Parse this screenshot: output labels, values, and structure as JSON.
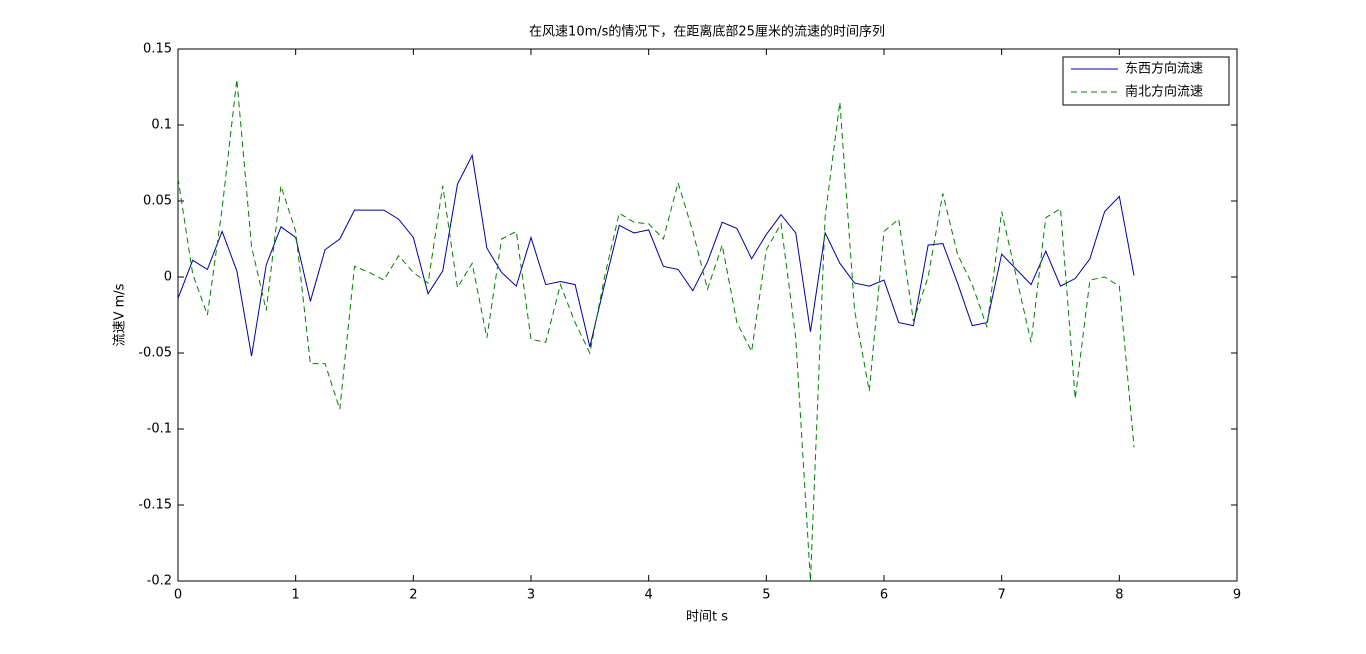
{
  "chart_data": {
    "type": "line",
    "title": "在风速10m/s的情况下，在距离底部25厘米的流速的时间序列",
    "x_label": "时间t s",
    "y_label": "流速V m/s",
    "x": [
      0,
      0.125,
      0.25,
      0.375,
      0.5,
      0.625,
      0.75,
      0.875,
      1,
      1.125,
      1.25,
      1.375,
      1.5,
      1.625,
      1.75,
      1.875,
      2,
      2.125,
      2.25,
      2.375,
      2.5,
      2.625,
      2.75,
      2.875,
      3,
      3.125,
      3.25,
      3.375,
      3.5,
      3.625,
      3.75,
      3.875,
      4,
      4.125,
      4.25,
      4.375,
      4.5,
      4.625,
      4.75,
      4.875,
      5,
      5.125,
      5.25,
      5.375,
      5.5,
      5.625,
      5.75,
      5.875,
      6,
      6.125,
      6.25,
      6.375,
      6.5,
      6.625,
      6.75,
      6.875,
      7,
      7.125,
      7.25,
      7.375,
      7.5,
      7.625,
      7.75,
      7.875,
      8,
      8.125
    ],
    "series": [
      {
        "name": "东西方向流速",
        "color": "#0000a0",
        "dash": false,
        "values": [
          -0.014,
          0.011,
          0.005,
          0.03,
          0.004,
          -0.052,
          0.008,
          0.033,
          0.026,
          -0.016,
          0.018,
          0.025,
          0.044,
          0.044,
          0.044,
          0.038,
          0.026,
          -0.011,
          0.004,
          0.061,
          0.08,
          0.019,
          0.003,
          -0.006,
          0.026,
          -0.005,
          -0.003,
          -0.005,
          -0.046,
          -0.005,
          0.034,
          0.029,
          0.031,
          0.007,
          0.005,
          -0.009,
          0.01,
          0.036,
          0.032,
          0.012,
          0.028,
          0.041,
          0.029,
          -0.036,
          0.029,
          0.009,
          -0.004,
          -0.006,
          -0.002,
          -0.03,
          -0.032,
          0.021,
          0.022,
          -0.004,
          -0.032,
          -0.03,
          0.015,
          0.005,
          -0.005,
          0.017,
          -0.006,
          -0.001,
          0.012,
          0.043,
          0.053,
          0.001
        ]
      },
      {
        "name": "南北方向流速",
        "color": "#008000",
        "dash": true,
        "values": [
          0.065,
          0.002,
          -0.025,
          0.045,
          0.13,
          0.02,
          -0.022,
          0.06,
          0.03,
          -0.057,
          -0.057,
          -0.087,
          0.007,
          0.003,
          -0.002,
          0.014,
          0.003,
          -0.004,
          0.06,
          -0.007,
          0.009,
          -0.04,
          0.025,
          0.03,
          -0.041,
          -0.043,
          -0.005,
          -0.03,
          -0.05,
          0.0,
          0.042,
          0.036,
          0.035,
          0.025,
          0.062,
          0.03,
          -0.008,
          0.021,
          -0.03,
          -0.049,
          0.018,
          0.035,
          -0.04,
          -0.2,
          0.04,
          0.115,
          -0.022,
          -0.075,
          0.03,
          0.038,
          -0.029,
          0.0,
          0.055,
          0.015,
          -0.005,
          -0.033,
          0.043,
          0.0,
          -0.043,
          0.039,
          0.045,
          -0.08,
          -0.002,
          0.0,
          -0.006,
          -0.112
        ]
      }
    ],
    "xlim": [
      0,
      9
    ],
    "xticks": [
      0,
      1,
      2,
      3,
      4,
      5,
      6,
      7,
      8,
      9
    ],
    "ylim": [
      -0.2,
      0.15
    ],
    "yticks": [
      -0.2,
      -0.15,
      -0.1,
      -0.05,
      0,
      0.05,
      0.1,
      0.15
    ],
    "legend": "top-right",
    "grid": false
  }
}
